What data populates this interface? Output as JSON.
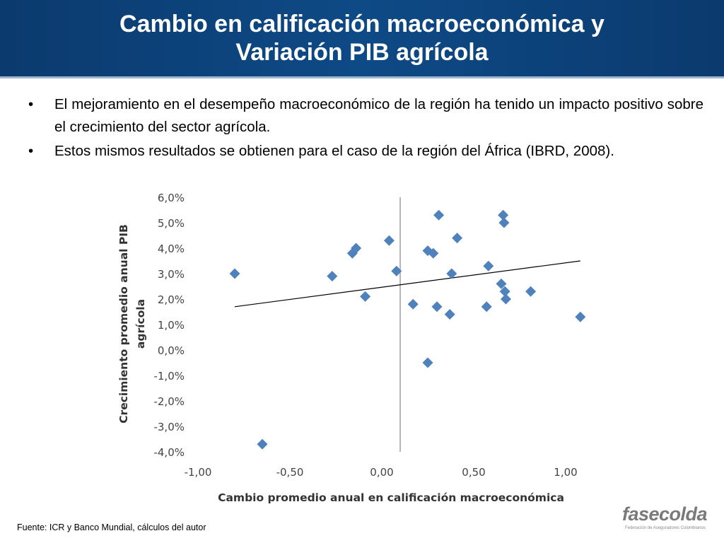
{
  "slide": {
    "title_line1": "Cambio en calificación macroeconómica y",
    "title_line2": "Variación PIB agrícola",
    "bullets": [
      "El mejoramiento en el desempeño macroeconómico de la región ha tenido un impacto positivo sobre el crecimiento del sector agrícola.",
      "Estos mismos resultados se obtienen para el caso de la región del África (IBRD, 2008)."
    ],
    "bullet_symbol": "•",
    "footer": "Fuente: ICR y Banco Mundial, cálculos del autor",
    "logo_text": "fasecolda",
    "logo_subtitle": "Federación de Aseguradores Colombianos"
  },
  "colors": {
    "title_bg": "#0e4a86",
    "marker": "#4f81bd",
    "trendline": "#000000",
    "axis": "#868686"
  },
  "chart_data": {
    "type": "scatter",
    "xlabel": "Cambio promedio anual en calificación macroeconómica",
    "ylabel_line1": "Crecimiento promedio anual PIB",
    "ylabel_line2": "agrícola",
    "xlim": [
      -1.0,
      1.0
    ],
    "ylim": [
      -0.04,
      0.06
    ],
    "x_ticks": [
      "-1,00",
      "-0,50",
      "0,00",
      "0,50",
      "1,00"
    ],
    "y_ticks": [
      "6,0%",
      "5,0%",
      "4,0%",
      "3,0%",
      "2,0%",
      "1,0%",
      "0,0%",
      "-1,0%",
      "-2,0%",
      "-3,0%",
      "-4,0%"
    ],
    "marker": "diamond",
    "points": [
      {
        "x": -0.9,
        "y": 0.03
      },
      {
        "x": -0.75,
        "y": -0.037
      },
      {
        "x": -0.37,
        "y": 0.029
      },
      {
        "x": -0.26,
        "y": 0.038
      },
      {
        "x": -0.24,
        "y": 0.04
      },
      {
        "x": -0.19,
        "y": 0.021
      },
      {
        "x": -0.06,
        "y": 0.043
      },
      {
        "x": -0.02,
        "y": 0.031
      },
      {
        "x": 0.07,
        "y": 0.018
      },
      {
        "x": 0.15,
        "y": 0.039
      },
      {
        "x": 0.15,
        "y": -0.005
      },
      {
        "x": 0.18,
        "y": 0.038
      },
      {
        "x": 0.2,
        "y": 0.017
      },
      {
        "x": 0.21,
        "y": 0.053
      },
      {
        "x": 0.27,
        "y": 0.014
      },
      {
        "x": 0.28,
        "y": 0.03
      },
      {
        "x": 0.31,
        "y": 0.044
      },
      {
        "x": 0.47,
        "y": 0.017
      },
      {
        "x": 0.48,
        "y": 0.033
      },
      {
        "x": 0.55,
        "y": 0.026
      },
      {
        "x": 0.56,
        "y": 0.053
      },
      {
        "x": 0.565,
        "y": 0.05
      },
      {
        "x": 0.57,
        "y": 0.023
      },
      {
        "x": 0.575,
        "y": 0.02
      },
      {
        "x": 0.71,
        "y": 0.023
      },
      {
        "x": 0.98,
        "y": 0.013
      }
    ],
    "trendline": {
      "x": [
        -0.9,
        0.98
      ],
      "y": [
        0.017,
        0.035
      ]
    },
    "grid": false
  }
}
